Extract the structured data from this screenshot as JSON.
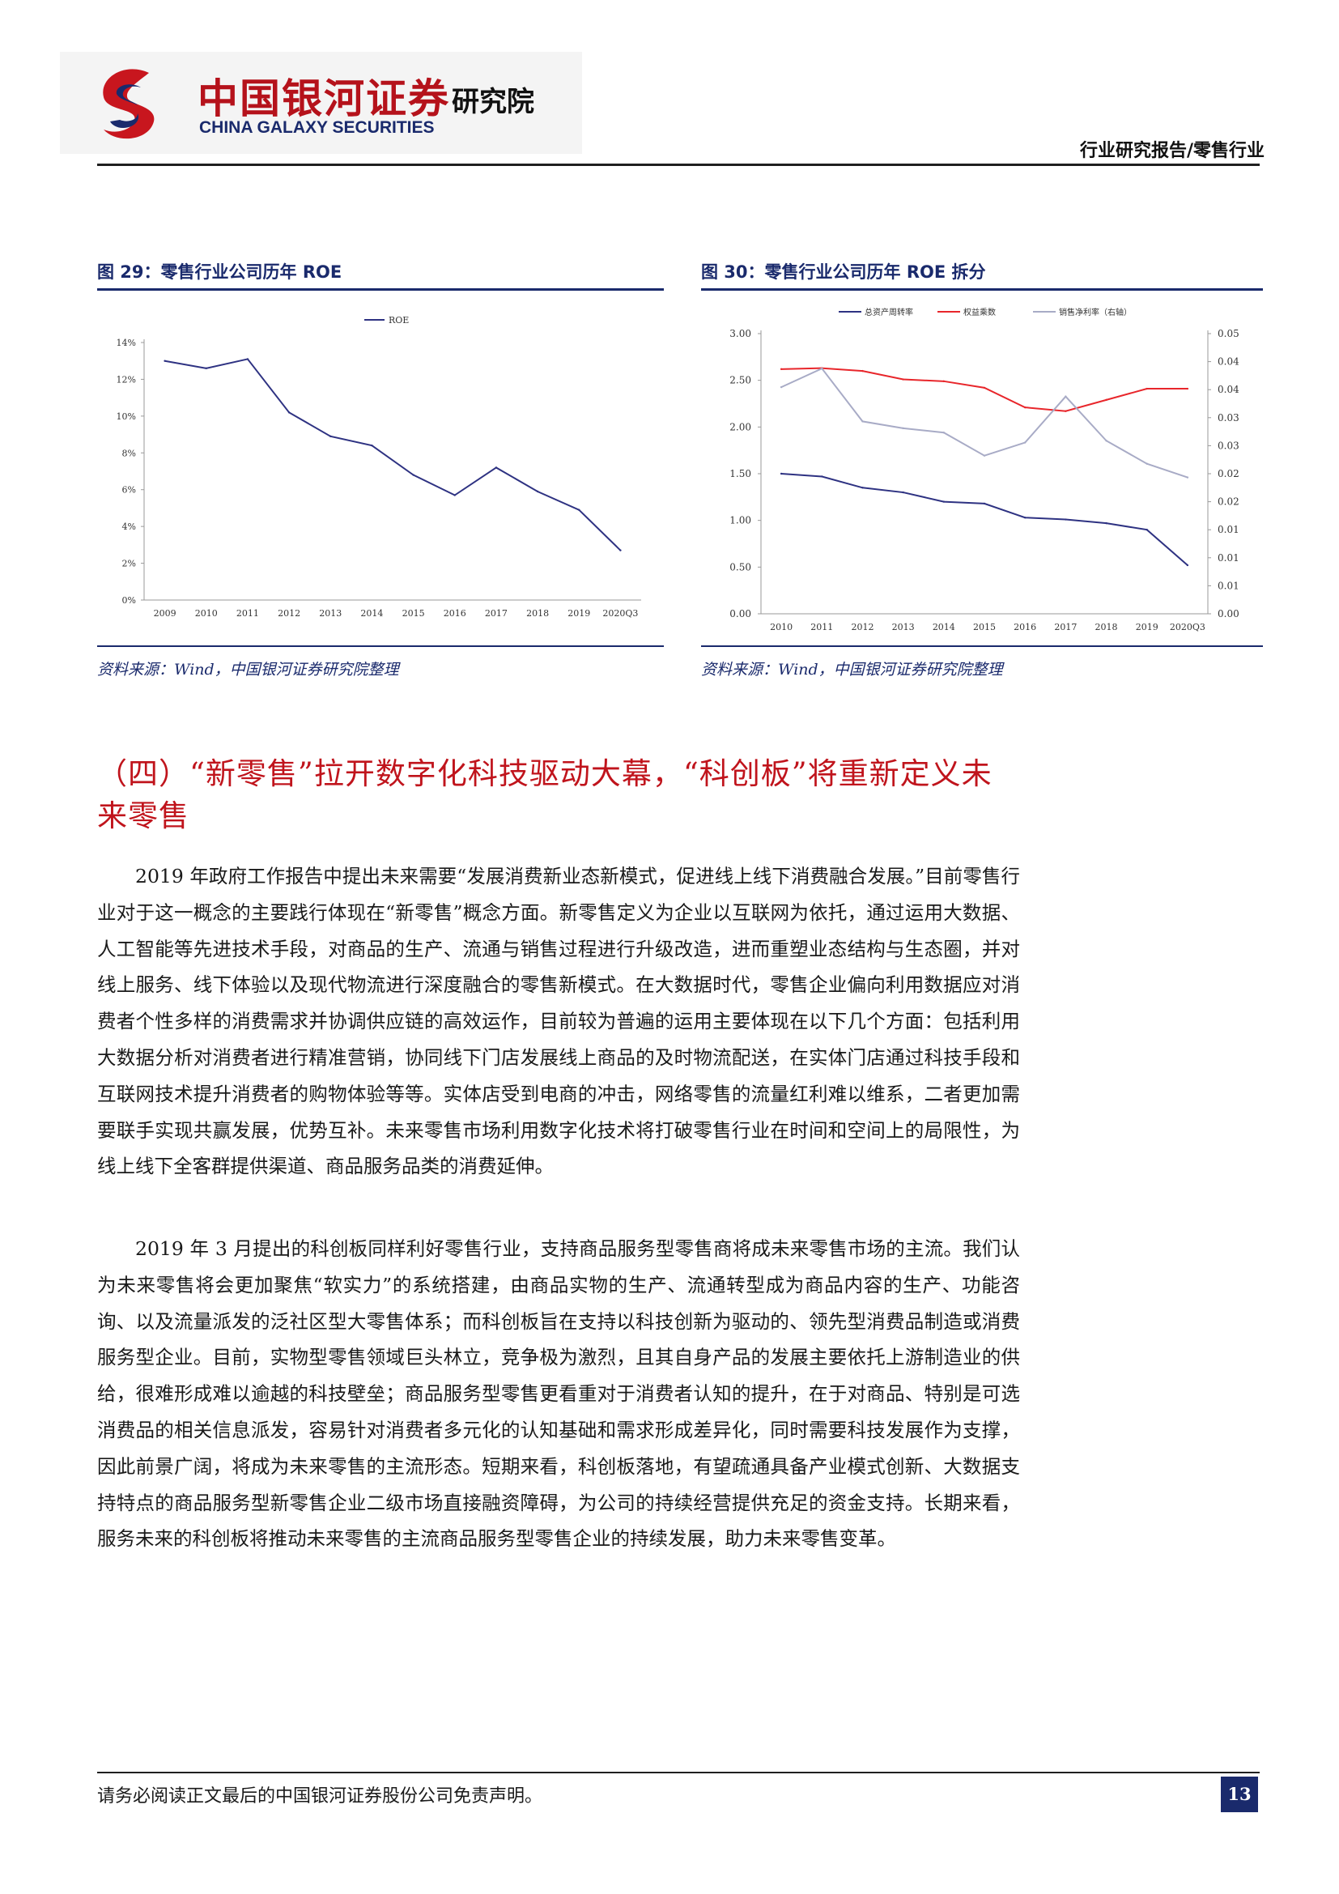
{
  "header": {
    "logo_cn": "中国银河证券",
    "logo_en": "CHINA GALAXY SECURITIES",
    "logo_institute": "研究院",
    "report_type": "行业研究报告/零售行业"
  },
  "figures": [
    {
      "caption": "图 29：零售行业公司历年 ROE",
      "source": "资料来源：Wind，中国银河证券研究院整理"
    },
    {
      "caption": "图 30：零售行业公司历年 ROE 拆分",
      "source": "资料来源：Wind，中国银河证券研究院整理"
    }
  ],
  "chart_data": [
    {
      "type": "line",
      "categories": [
        "2009",
        "2010",
        "2011",
        "2012",
        "2013",
        "2014",
        "2015",
        "2016",
        "2017",
        "2018",
        "2019",
        "2020Q3"
      ],
      "series": [
        {
          "name": "ROE",
          "color": "#2e3282",
          "values": [
            13.0,
            12.6,
            13.1,
            10.2,
            8.9,
            8.4,
            6.8,
            5.7,
            7.2,
            5.9,
            4.9,
            2.7
          ]
        }
      ],
      "ylim": [
        0,
        14
      ],
      "y_ticks": [
        "0%",
        "2%",
        "4%",
        "6%",
        "8%",
        "10%",
        "12%",
        "14%"
      ],
      "legend_position": "top-center",
      "grid": false
    },
    {
      "type": "line",
      "categories": [
        "2010",
        "2011",
        "2012",
        "2013",
        "2014",
        "2015",
        "2016",
        "2017",
        "2018",
        "2019",
        "2020Q3"
      ],
      "series": [
        {
          "name": "总资产周转率",
          "axis": "left",
          "color": "#2e3282",
          "values": [
            1.5,
            1.47,
            1.35,
            1.3,
            1.2,
            1.18,
            1.03,
            1.01,
            0.97,
            0.9,
            0.52
          ]
        },
        {
          "name": "权益乘数",
          "axis": "left",
          "color": "#e8262b",
          "values": [
            2.62,
            2.63,
            2.6,
            2.51,
            2.49,
            2.42,
            2.21,
            2.17,
            2.29,
            2.41,
            2.41
          ]
        },
        {
          "name": "销售净利率（右轴）",
          "axis": "right",
          "color": "#a8abc6",
          "values": [
            0.0364,
            0.0394,
            0.0309,
            0.0298,
            0.0291,
            0.0254,
            0.0275,
            0.0349,
            0.0278,
            0.0241,
            0.0219
          ]
        }
      ],
      "ylim_left": [
        0,
        3.0
      ],
      "ylim_right": [
        0,
        0.045
      ],
      "y_ticks_left": [
        "0.00",
        "0.50",
        "1.00",
        "1.50",
        "2.00",
        "2.50",
        "3.00"
      ],
      "y_ticks_right": [
        "0.00",
        "0.01",
        "0.01",
        "0.01",
        "0.02",
        "0.02",
        "0.03",
        "0.03",
        "0.04",
        "0.04",
        "0.05"
      ],
      "legend_position": "top-center",
      "grid": false
    }
  ],
  "section": {
    "heading": "（四）“新零售”拉开数字化科技驱动大幕，“科创板”将重新定义未来零售"
  },
  "paragraphs": [
    "2019 年政府工作报告中提出未来需要“发展消费新业态新模式，促进线上线下消费融合发展。”目前零售行业对于这一概念的主要践行体现在“新零售”概念方面。新零售定义为企业以互联网为依托，通过运用大数据、人工智能等先进技术手段，对商品的生产、流通与销售过程进行升级改造，进而重塑业态结构与生态圈，并对线上服务、线下体验以及现代物流进行深度融合的零售新模式。在大数据时代，零售企业偏向利用数据应对消费者个性多样的消费需求并协调供应链的高效运作，目前较为普遍的运用主要体现在以下几个方面：包括利用大数据分析对消费者进行精准营销，协同线下门店发展线上商品的及时物流配送，在实体门店通过科技手段和互联网技术提升消费者的购物体验等等。实体店受到电商的冲击，网络零售的流量红利难以维系，二者更加需要联手实现共赢发展，优势互补。未来零售市场利用数字化技术将打破零售行业在时间和空间上的局限性，为线上线下全客群提供渠道、商品服务品类的消费延伸。",
    "2019 年 3 月提出的科创板同样利好零售行业，支持商品服务型零售商将成未来零售市场的主流。我们认为未来零售将会更加聚焦“软实力”的系统搭建，由商品实物的生产、流通转型成为商品内容的生产、功能咨询、以及流量派发的泛社区型大零售体系；而科创板旨在支持以科技创新为驱动的、领先型消费品制造或消费服务型企业。目前，实物型零售领域巨头林立，竞争极为激烈，且其自身产品的发展主要依托上游制造业的供给，很难形成难以逾越的科技壁垒；商品服务型零售更看重对于消费者认知的提升，在于对商品、特别是可选消费品的相关信息派发，容易针对消费者多元化的认知基础和需求形成差异化，同时需要科技发展作为支撑，因此前景广阔，将成为未来零售的主流形态。短期来看，科创板落地，有望疏通具备产业模式创新、大数据支持特点的商品服务型新零售企业二级市场直接融资障碍，为公司的持续经营提供充足的资金支持。长期来看，服务未来的科创板将推动未来零售的主流商品服务型零售企业的持续发展，助力未来零售变革。"
  ],
  "footer": {
    "disclaimer": "请务必阅读正文最后的中国银河证券股份公司免责声明。",
    "page_number": "13"
  }
}
